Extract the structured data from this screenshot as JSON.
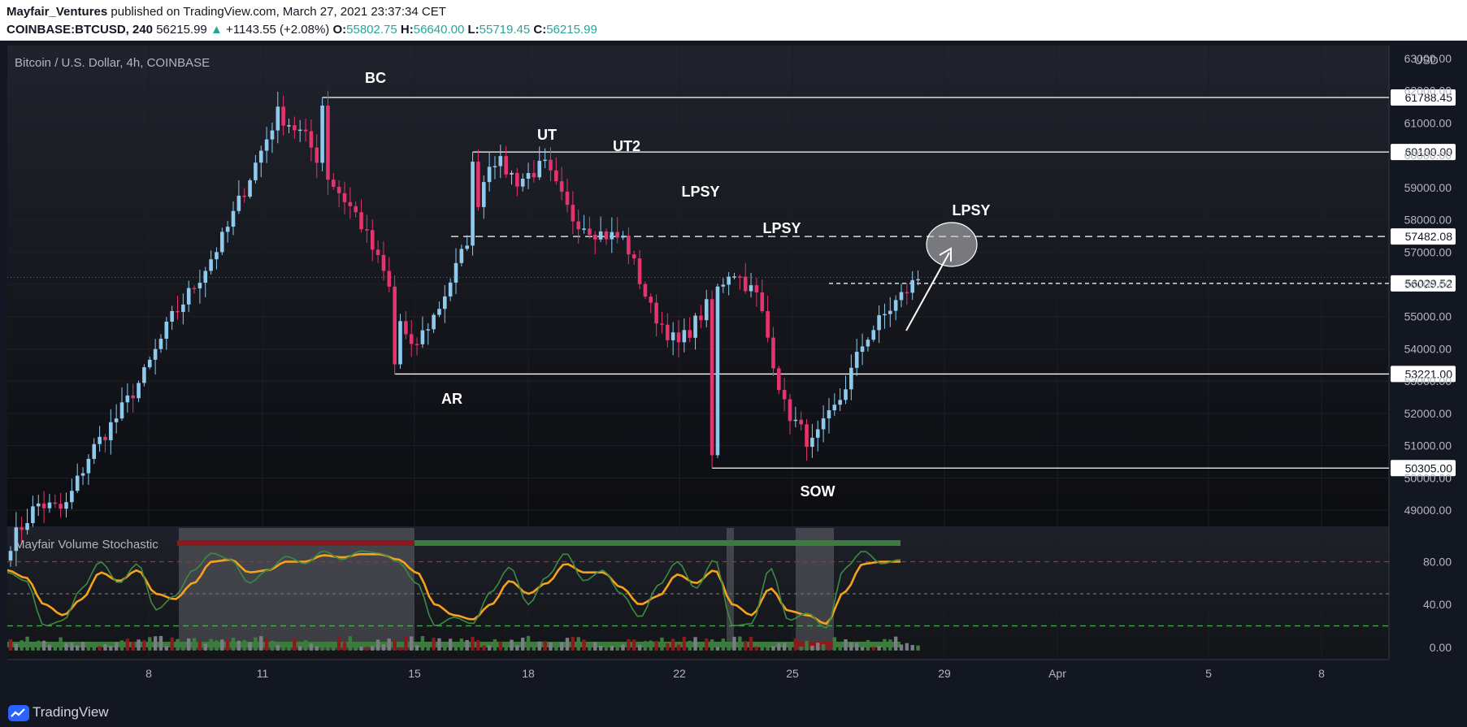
{
  "header": {
    "author": "Mayfair_Ventures",
    "published_text": "published on TradingView.com, March 27, 2021 23:37:34 CET",
    "symbol": "COINBASE:BTCUSD, 240",
    "last": "56215.99",
    "change_arrow": "▲",
    "change": "+1143.55 (+2.08%)",
    "o_label": "O:",
    "o_value": "55802.75",
    "h_label": "H:",
    "h_value": "56640.00",
    "l_label": "L:",
    "l_value": "55719.45",
    "c_label": "C:",
    "c_value": "56215.99"
  },
  "footer": {
    "brand": "TradingView",
    "logo_icon": "tradingview-logo-icon"
  },
  "colors": {
    "background": "#131722",
    "up": "#8ec9ee",
    "down": "#e5336e",
    "text": "#d1d4dc",
    "level_line": "#ffffff",
    "stoch_fast": "#3b8a45",
    "stoch_slow": "#f7a21b",
    "stoch_mid": "#1c5b5f"
  },
  "chart_data": [
    {
      "type": "candlestick",
      "title": "Bitcoin / U.S. Dollar, 4h, COINBASE",
      "currency": "USD",
      "y_ticks": [
        49000,
        50000,
        51000,
        52000,
        53000,
        54000,
        55000,
        56000,
        57000,
        58000,
        59000,
        60000,
        61000,
        62000,
        63000
      ],
      "ylim": [
        48500,
        63400
      ],
      "x_ticks": [
        "8",
        "11",
        "15",
        "18",
        "22",
        "25",
        "29",
        "Apr",
        "5",
        "8"
      ],
      "price_labels": [
        "61788.45",
        "60100.00",
        "57482.08",
        "56029.52",
        "53221.00",
        "50305.00"
      ],
      "annotations": [
        "BC",
        "UT",
        "UT2",
        "LPSY",
        "LPSY",
        "LPSY",
        "AR",
        "SOW"
      ],
      "anchors": [
        48000,
        49200,
        49000,
        50800,
        51900,
        53200,
        54900,
        56100,
        57500,
        59400,
        61300,
        60600,
        59200,
        58100,
        56300,
        53900,
        55200,
        57100,
        60000,
        59200,
        59700,
        58100,
        57600,
        57400,
        55200,
        54100,
        55200,
        56500,
        55600,
        52200,
        51000,
        52300,
        54300,
        55300,
        56200
      ],
      "extremes": {
        "bc_high": 61788.45,
        "ut_high": 60100.0,
        "ar_low": 53221.0,
        "sow_low": 50305.0,
        "lpsy_level": 57482.08,
        "current_level": 56029.52
      }
    },
    {
      "type": "line",
      "title": "Mayfair Volume Stochastic",
      "y_ticks": [
        "80.00",
        "40.00",
        "0.00"
      ],
      "ylim": [
        -10,
        110
      ],
      "levels": [
        80,
        50,
        20
      ],
      "fast_anchors": [
        70,
        62,
        20,
        25,
        55,
        80,
        60,
        78,
        35,
        48,
        72,
        88,
        82,
        60,
        72,
        85,
        78,
        90,
        82,
        90,
        88,
        80,
        60,
        20,
        28,
        22,
        52,
        75,
        40,
        66,
        88,
        62,
        72,
        50,
        28,
        58,
        80,
        55,
        82,
        20,
        22,
        74,
        25,
        32,
        18,
        74,
        90,
        78,
        82
      ],
      "slow_anchors": [
        72,
        65,
        40,
        30,
        45,
        70,
        62,
        72,
        50,
        45,
        60,
        80,
        82,
        70,
        72,
        80,
        80,
        86,
        84,
        87,
        87,
        82,
        70,
        40,
        30,
        26,
        40,
        62,
        50,
        60,
        78,
        70,
        70,
        56,
        40,
        48,
        68,
        60,
        72,
        40,
        30,
        55,
        34,
        30,
        22,
        52,
        78,
        80,
        80
      ]
    }
  ]
}
